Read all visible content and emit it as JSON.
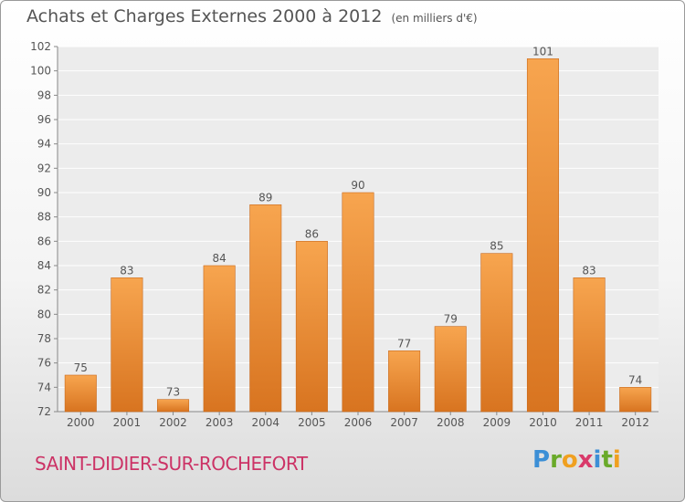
{
  "title": "Achats et Charges Externes 2000 à 2012",
  "unit": "(en milliers d'€)",
  "commune": "SAINT-DIDIER-SUR-ROCHEFORT",
  "logo": {
    "text": "Proxiti",
    "colors": [
      "#3c8fd6",
      "#6aaa2a",
      "#f0a020",
      "#d93a6a",
      "#3c8fd6",
      "#6aaa2a",
      "#f0a020"
    ]
  },
  "colors": {
    "bar_light": "#f7a54f",
    "bar_dark": "#d87420",
    "text": "#555555"
  },
  "chart_data": {
    "type": "bar",
    "title": "Achats et Charges Externes 2000 à 2012",
    "categories": [
      "2000",
      "2001",
      "2002",
      "2003",
      "2004",
      "2005",
      "2006",
      "2007",
      "2008",
      "2009",
      "2010",
      "2011",
      "2012"
    ],
    "values": [
      75,
      83,
      73,
      84,
      89,
      86,
      90,
      77,
      79,
      85,
      101,
      83,
      74
    ],
    "ylim": [
      72,
      102
    ],
    "yticks": [
      72,
      74,
      76,
      78,
      80,
      82,
      84,
      86,
      88,
      90,
      92,
      94,
      96,
      98,
      100,
      102
    ],
    "grid": true,
    "xlabel": "",
    "ylabel": ""
  }
}
